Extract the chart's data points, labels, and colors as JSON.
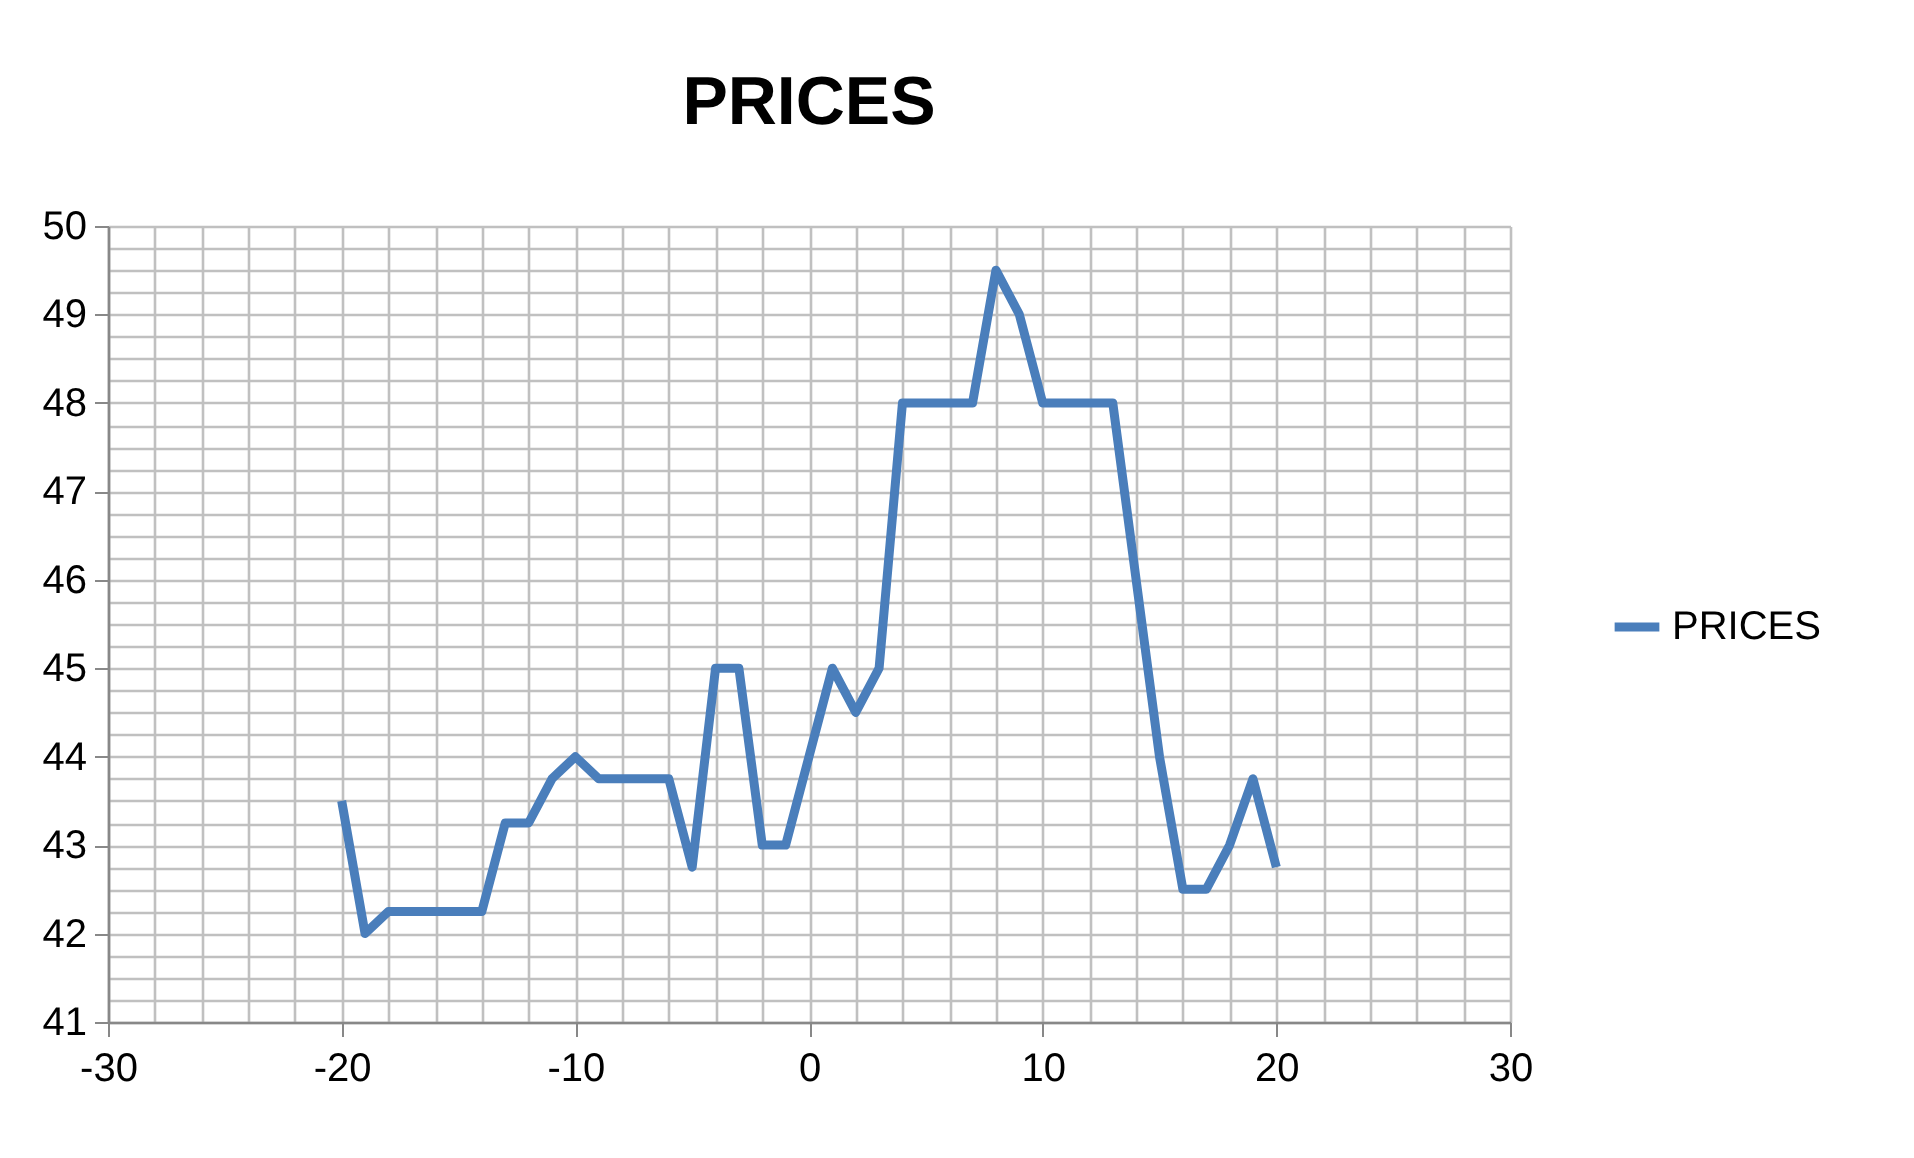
{
  "chart_data": {
    "type": "line",
    "title": "PRICES",
    "x": [
      -20,
      -19,
      -18,
      -17,
      -16,
      -15,
      -14,
      -13,
      -12,
      -11,
      -10,
      -9,
      -8,
      -7,
      -6,
      -5,
      -4,
      -3,
      -2,
      -1,
      0,
      1,
      2,
      3,
      4,
      5,
      6,
      7,
      8,
      9,
      10,
      11,
      12,
      13,
      14,
      15,
      16,
      17,
      18,
      19,
      20
    ],
    "series": [
      {
        "name": "PRICES",
        "color": "#4a7ebb",
        "values": [
          43.5,
          42,
          42.25,
          42.25,
          42.25,
          42.25,
          42.25,
          43.25,
          43.25,
          43.75,
          44,
          43.75,
          43.75,
          43.75,
          43.75,
          42.75,
          45,
          45,
          43,
          43,
          44,
          45,
          44.5,
          45,
          48,
          48,
          48,
          48,
          49.5,
          49,
          48,
          48,
          48,
          48,
          46,
          44,
          42.5,
          42.5,
          43,
          43.75,
          42.75
        ]
      }
    ],
    "xlim": [
      -30,
      30
    ],
    "xticks": [
      -30,
      {
        "value": -28,
        "label": null
      },
      {
        "value": -26,
        "label": null
      },
      {
        "value": -24,
        "label": null
      },
      {
        "value": -22,
        "label": null
      },
      -20,
      {
        "value": -18,
        "label": null
      },
      {
        "value": -16,
        "label": null
      },
      {
        "value": -14,
        "label": null
      },
      {
        "value": -12,
        "label": null
      },
      -10,
      {
        "value": -8,
        "label": null
      },
      {
        "value": -6,
        "label": null
      },
      {
        "value": -4,
        "label": null
      },
      {
        "value": -2,
        "label": null
      },
      0,
      {
        "value": 2,
        "label": null
      },
      {
        "value": 4,
        "label": null
      },
      {
        "value": 6,
        "label": null
      },
      {
        "value": 8,
        "label": null
      },
      10,
      {
        "value": 12,
        "label": null
      },
      {
        "value": 14,
        "label": null
      },
      {
        "value": 16,
        "label": null
      },
      {
        "value": 18,
        "label": null
      },
      20,
      {
        "value": 22,
        "label": null
      },
      {
        "value": 24,
        "label": null
      },
      {
        "value": 26,
        "label": null
      },
      {
        "value": 28,
        "label": null
      },
      30
    ],
    "ylim": [
      41,
      50
    ],
    "yticks": [
      41,
      {
        "value": 41.25,
        "label": null
      },
      {
        "value": 41.5,
        "label": null
      },
      {
        "value": 41.75,
        "label": null
      },
      42,
      {
        "value": 42.25,
        "label": null
      },
      {
        "value": 42.5,
        "label": null
      },
      {
        "value": 42.75,
        "label": null
      },
      43,
      {
        "value": 43.25,
        "label": null
      },
      {
        "value": 43.5,
        "label": null
      },
      {
        "value": 43.75,
        "label": null
      },
      44,
      {
        "value": 44.25,
        "label": null
      },
      {
        "value": 44.5,
        "label": null
      },
      {
        "value": 44.75,
        "label": null
      },
      45,
      {
        "value": 45.25,
        "label": null
      },
      {
        "value": 45.5,
        "label": null
      },
      {
        "value": 45.75,
        "label": null
      },
      46,
      {
        "value": 46.25,
        "label": null
      },
      {
        "value": 46.5,
        "label": null
      },
      {
        "value": 46.75,
        "label": null
      },
      47,
      {
        "value": 47.25,
        "label": null
      },
      {
        "value": 47.5,
        "label": null
      },
      {
        "value": 47.75,
        "label": null
      },
      48,
      {
        "value": 48.25,
        "label": null
      },
      {
        "value": 48.5,
        "label": null
      },
      {
        "value": 48.75,
        "label": null
      },
      49,
      {
        "value": 49.25,
        "label": null
      },
      {
        "value": 49.5,
        "label": null
      },
      {
        "value": 49.75,
        "label": null
      },
      50
    ],
    "grid": true,
    "legend": "right",
    "marker": "none",
    "line_style": "solid"
  }
}
